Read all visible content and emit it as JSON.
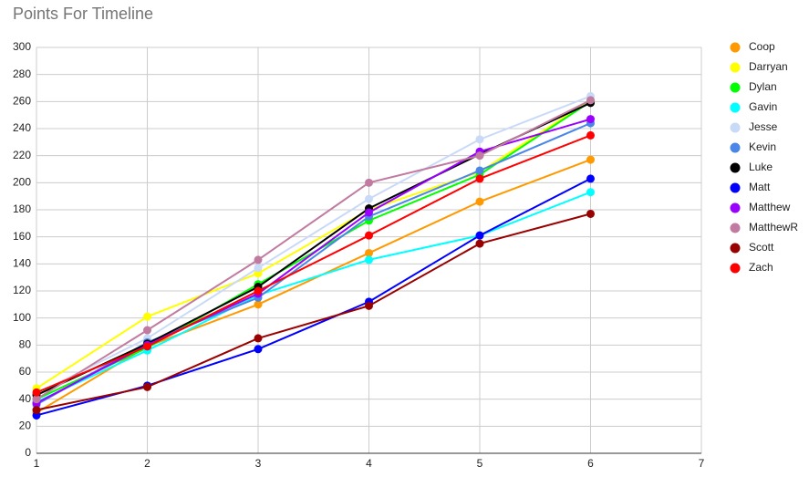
{
  "chart_data": {
    "type": "line",
    "title": "Points For Timeline",
    "x": [
      1,
      2,
      3,
      4,
      5,
      6
    ],
    "xlim": [
      1,
      7
    ],
    "xticks": [
      1,
      2,
      3,
      4,
      5,
      6,
      7
    ],
    "ylim": [
      0,
      300
    ],
    "yticks": [
      0,
      20,
      40,
      60,
      80,
      100,
      120,
      140,
      160,
      180,
      200,
      220,
      240,
      260,
      280,
      300
    ],
    "grid": true,
    "legend": "right",
    "series": [
      {
        "name": "Coop",
        "color": "#ff9900",
        "values": [
          30,
          79,
          110,
          148,
          186,
          217
        ]
      },
      {
        "name": "Darryan",
        "color": "#ffff00",
        "values": [
          48,
          101,
          133,
          180,
          208,
          261
        ]
      },
      {
        "name": "Dylan",
        "color": "#00ff00",
        "values": [
          40,
          78,
          125,
          172,
          206,
          260
        ]
      },
      {
        "name": "Gavin",
        "color": "#00ffff",
        "values": [
          38,
          76,
          117,
          143,
          161,
          193
        ]
      },
      {
        "name": "Jesse",
        "color": "#c9daf8",
        "values": [
          44,
          85,
          137,
          188,
          232,
          264
        ]
      },
      {
        "name": "Kevin",
        "color": "#4a86e8",
        "values": [
          36,
          82,
          115,
          175,
          209,
          244
        ]
      },
      {
        "name": "Luke",
        "color": "#000000",
        "values": [
          43,
          81,
          123,
          181,
          221,
          259
        ]
      },
      {
        "name": "Matt",
        "color": "#0000ff",
        "values": [
          28,
          50,
          77,
          112,
          161,
          203
        ]
      },
      {
        "name": "Matthew",
        "color": "#9900ff",
        "values": [
          37,
          80,
          118,
          178,
          223,
          247
        ]
      },
      {
        "name": "MatthewR",
        "color": "#c27ba0",
        "values": [
          40,
          91,
          143,
          200,
          220,
          261
        ]
      },
      {
        "name": "Scott",
        "color": "#990000",
        "values": [
          32,
          49,
          85,
          109,
          155,
          177
        ]
      },
      {
        "name": "Zach",
        "color": "#ff0000",
        "values": [
          45,
          79,
          120,
          161,
          203,
          235
        ]
      }
    ]
  }
}
